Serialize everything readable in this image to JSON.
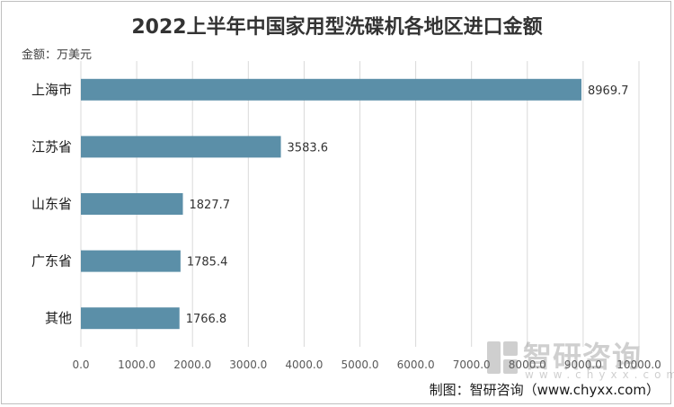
{
  "chart_data": {
    "type": "bar",
    "orientation": "horizontal",
    "title": "2022上半年中国家用型洗碟机各地区进口金额",
    "unit_label": "金额：万美元",
    "categories": [
      "上海市",
      "江苏省",
      "山东省",
      "广东省",
      "其他"
    ],
    "values": [
      8969.7,
      3583.6,
      1827.7,
      1785.4,
      1766.8
    ],
    "value_labels": [
      "8969.7",
      "3583.6",
      "1827.7",
      "1785.4",
      "1766.8"
    ],
    "xlim": [
      0,
      10000
    ],
    "x_ticks": [
      0,
      1000,
      2000,
      3000,
      4000,
      5000,
      6000,
      7000,
      8000,
      9000,
      10000
    ],
    "x_tick_labels": [
      "0.0",
      "1000.0",
      "2000.0",
      "3000.0",
      "4000.0",
      "5000.0",
      "6000.0",
      "7000.0",
      "8000.0",
      "9000.0",
      "10000.0"
    ],
    "grid": true,
    "bar_color": "#5b8fa8",
    "grid_color": "#d9d9d9"
  },
  "credit": "制图：智研咨询（www.chyxx.com）",
  "watermark": {
    "text": "智研咨询",
    "url": "www.chyxx.com"
  }
}
